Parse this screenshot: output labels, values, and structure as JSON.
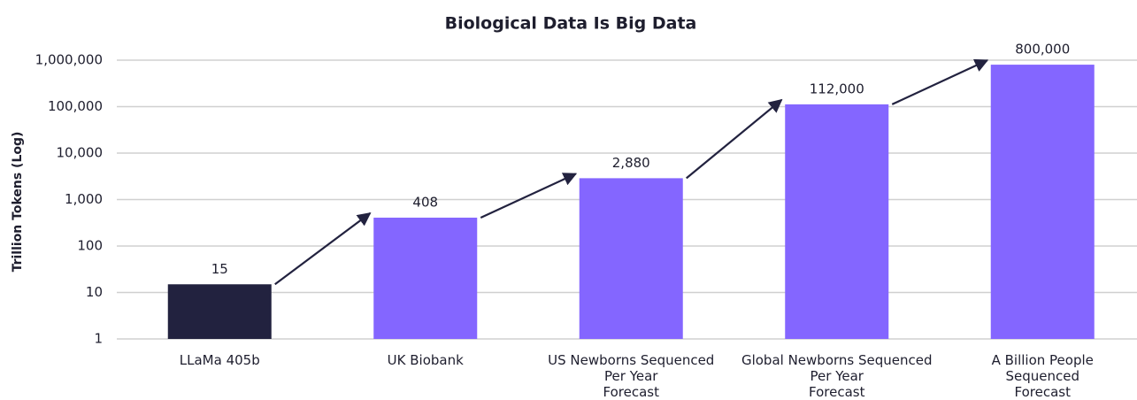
{
  "chart_data": {
    "type": "bar",
    "title": "Biological Data Is Big Data",
    "y_label": "Trillion Tokens (Log)",
    "categories": [
      "LLaMa 405b",
      "UK Biobank",
      "US Newborns Sequenced\nPer Year\nForecast",
      "Global Newborns Sequenced\nPer Year\nForecast",
      "A Billion People\nSequenced\nForecast"
    ],
    "values": [
      15,
      408,
      2880,
      112000,
      800000
    ],
    "value_labels": [
      "15",
      "408",
      "2,880",
      "112,000",
      "800,000"
    ],
    "colors": [
      "#22223f",
      "#8466ff",
      "#8466ff",
      "#8466ff",
      "#8466ff"
    ],
    "log_y": true,
    "ylim": [
      1,
      1000000
    ],
    "yticks": [
      1,
      10,
      100,
      {
        "value": 1000,
        "label": "1,000"
      },
      {
        "value": 10000,
        "label": "10,000"
      },
      {
        "value": 100000,
        "label": "100,000"
      },
      {
        "value": 1000000,
        "label": "1,000,000"
      }
    ],
    "grid": true
  }
}
